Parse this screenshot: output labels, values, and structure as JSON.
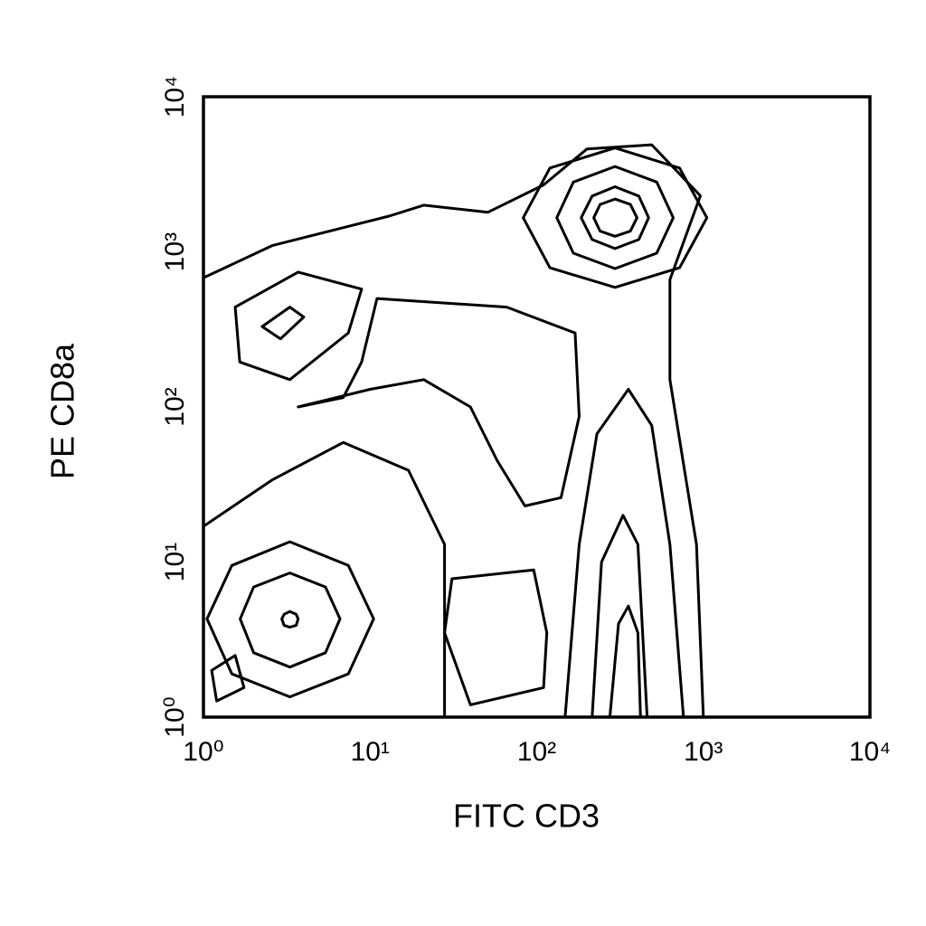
{
  "chart_data": {
    "type": "contour",
    "x_label": "FITC CD3",
    "y_label": "PE CD8a",
    "x_scale": "log",
    "y_scale": "log",
    "xlim": [
      1,
      10000
    ],
    "ylim": [
      1,
      10000
    ],
    "xticks": [
      {
        "value": 1,
        "label": "10⁰"
      },
      {
        "value": 10,
        "label": "10¹"
      },
      {
        "value": 100,
        "label": "10²"
      },
      {
        "value": 1000,
        "label": "10³"
      },
      {
        "value": 10000,
        "label": "10⁴"
      }
    ],
    "yticks": [
      {
        "value": 1,
        "label": "10⁰"
      },
      {
        "value": 10,
        "label": "10¹"
      },
      {
        "value": 100,
        "label": "10²"
      },
      {
        "value": 1000,
        "label": "10³"
      },
      {
        "value": 10000,
        "label": "10⁴"
      }
    ],
    "color": "#000000",
    "contours": [
      {
        "closed": false,
        "x": [
          1,
          2.6,
          13,
          21,
          51,
          110,
          200,
          490,
          960,
          630,
          630,
          910,
          1000
        ],
        "y": [
          680,
          1100,
          1700,
          2000,
          1800,
          2700,
          4600,
          4900,
          2300,
          660,
          150,
          13,
          1
        ]
      },
      {
        "closed": true,
        "x": [
          1050,
          720,
          295,
          120,
          83,
          120,
          295,
          720
        ],
        "y": [
          1660,
          3470,
          4680,
          3470,
          1660,
          790,
          590,
          790
        ]
      },
      {
        "closed": true,
        "x": [
          660,
          525,
          295,
          166,
          132,
          166,
          295,
          525
        ],
        "y": [
          1660,
          2820,
          3550,
          2820,
          1660,
          980,
          780,
          980
        ]
      },
      {
        "closed": true,
        "x": [
          470,
          410,
          295,
          215,
          185,
          215,
          295,
          410
        ],
        "y": [
          1660,
          2290,
          2630,
          2290,
          1660,
          1200,
          1050,
          1200
        ]
      },
      {
        "closed": true,
        "x": [
          400,
          365,
          295,
          240,
          220,
          240,
          295,
          365
        ],
        "y": [
          1660,
          2020,
          2190,
          2020,
          1660,
          1360,
          1260,
          1360
        ]
      },
      {
        "closed": true,
        "x": [
          10.5,
          7.4,
          3.3,
          1.48,
          1.05,
          1.48,
          3.3,
          7.4
        ],
        "y": [
          4.3,
          9.5,
          13.5,
          9.5,
          4.3,
          1.9,
          1.35,
          1.9
        ]
      },
      {
        "closed": true,
        "x": [
          6.6,
          5.4,
          3.3,
          2.0,
          1.66,
          2.0,
          3.3,
          5.4
        ],
        "y": [
          4.3,
          6.9,
          8.5,
          6.9,
          4.3,
          2.6,
          2.1,
          2.6
        ]
      },
      {
        "closed": true,
        "x": [
          3.7,
          3.6,
          3.3,
          3.05,
          2.95,
          3.05,
          3.3,
          3.6
        ],
        "y": [
          4.3,
          4.6,
          4.8,
          4.6,
          4.3,
          3.9,
          3.8,
          3.9
        ]
      },
      {
        "closed": false,
        "x": [
          1,
          2.6,
          6.9,
          17,
          28,
          28
        ],
        "y": [
          17,
          34,
          59,
          39,
          13,
          1
        ]
      },
      {
        "closed": false,
        "x": [
          148,
          180,
          230,
          355,
          490,
          630,
          760
        ],
        "y": [
          1,
          13,
          67,
          130,
          76,
          13,
          1
        ]
      },
      {
        "closed": false,
        "x": [
          215,
          245,
          330,
          405,
          460
        ],
        "y": [
          1,
          10,
          20,
          13,
          1
        ]
      },
      {
        "closed": false,
        "x": [
          275,
          310,
          355,
          405,
          420
        ],
        "y": [
          1,
          4.0,
          5.2,
          3.5,
          1
        ]
      },
      {
        "closed": true,
        "x": [
          3.7,
          10,
          21,
          40,
          58,
          85,
          140,
          180,
          170,
          66,
          11,
          8.9,
          6.9
        ],
        "y": [
          100,
          130,
          150,
          100,
          45,
          23,
          26,
          87,
          300,
          440,
          500,
          195,
          115
        ]
      },
      {
        "closed": true,
        "x": [
          1.55,
          3.7,
          8.9,
          7.4,
          3.3,
          1.65
        ],
        "y": [
          440,
          740,
          575,
          300,
          150,
          195
        ]
      },
      {
        "closed": true,
        "x": [
          2.25,
          3.3,
          4.0,
          2.9
        ],
        "y": [
          330,
          440,
          380,
          275
        ]
      },
      {
        "closed": true,
        "x": [
          31,
          96,
          115,
          110,
          40,
          28
        ],
        "y": [
          7.8,
          8.9,
          3.5,
          1.55,
          1.2,
          3.5
        ]
      },
      {
        "closed": true,
        "x": [
          1.12,
          1.55,
          1.75,
          1.2
        ],
        "y": [
          2.0,
          2.5,
          1.55,
          1.27
        ]
      }
    ]
  }
}
